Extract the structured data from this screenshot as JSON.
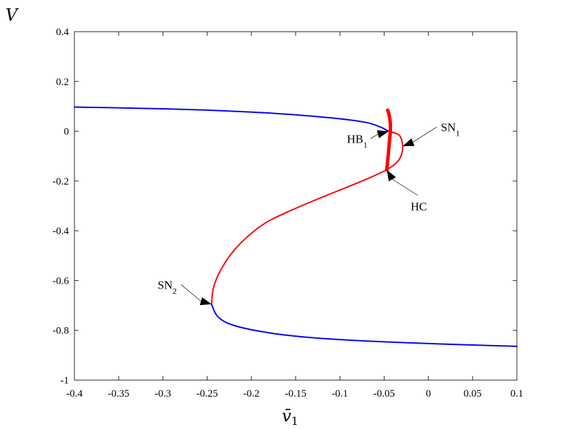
{
  "chart_data": {
    "type": "line",
    "title": "",
    "xlabel": "v̄",
    "xlabel_subscript": "1",
    "ylabel": "V",
    "xlim": [
      -0.4,
      0.1
    ],
    "ylim": [
      -1,
      0.4
    ],
    "grid": false,
    "x_ticks": [
      -0.4,
      -0.35,
      -0.3,
      -0.25,
      -0.2,
      -0.15,
      -0.1,
      -0.05,
      0,
      0.05,
      0.1
    ],
    "x_tick_labels": [
      "-0.4",
      "-0.35",
      "-0.3",
      "-0.25",
      "-0.2",
      "-0.15",
      "-0.1",
      "-0.05",
      "0",
      "0.05",
      "0.1"
    ],
    "y_ticks": [
      0.4,
      0.2,
      0,
      -0.2,
      -0.4,
      -0.6,
      -0.8,
      -1
    ],
    "y_tick_labels": [
      "0.4",
      "0.2",
      "0",
      "-0.2",
      "-0.4",
      "-0.6",
      "-0.8",
      "-1"
    ],
    "series": [
      {
        "color": "#0000ff",
        "style": "stable-upper",
        "points": [
          [
            -0.4,
            0.097
          ],
          [
            -0.35,
            0.094
          ],
          [
            -0.3,
            0.09
          ],
          [
            -0.25,
            0.085
          ],
          [
            -0.2,
            0.077
          ],
          [
            -0.15,
            0.066
          ],
          [
            -0.1,
            0.05
          ],
          [
            -0.07,
            0.035
          ],
          [
            -0.055,
            0.018
          ],
          [
            -0.045,
            0.0
          ]
        ]
      },
      {
        "color": "#ff0000",
        "style": "unstable-loop",
        "points": [
          [
            -0.045,
            0.0
          ],
          [
            -0.038,
            -0.007
          ],
          [
            -0.032,
            -0.02
          ],
          [
            -0.029,
            -0.06
          ],
          [
            -0.031,
            -0.1
          ],
          [
            -0.037,
            -0.13
          ],
          [
            -0.047,
            -0.155
          ]
        ]
      },
      {
        "color": "#ff0000",
        "style": "unstable-middle",
        "points": [
          [
            -0.047,
            -0.155
          ],
          [
            -0.065,
            -0.185
          ],
          [
            -0.09,
            -0.222
          ],
          [
            -0.12,
            -0.265
          ],
          [
            -0.15,
            -0.31
          ],
          [
            -0.18,
            -0.36
          ],
          [
            -0.2,
            -0.41
          ],
          [
            -0.22,
            -0.48
          ],
          [
            -0.235,
            -0.56
          ],
          [
            -0.243,
            -0.63
          ],
          [
            -0.245,
            -0.695
          ]
        ]
      },
      {
        "color": "#0000ff",
        "style": "stable-lower",
        "points": [
          [
            -0.245,
            -0.695
          ],
          [
            -0.238,
            -0.745
          ],
          [
            -0.22,
            -0.78
          ],
          [
            -0.18,
            -0.81
          ],
          [
            -0.13,
            -0.83
          ],
          [
            -0.07,
            -0.843
          ],
          [
            0.0,
            -0.853
          ],
          [
            0.05,
            -0.859
          ],
          [
            0.1,
            -0.864
          ]
        ]
      },
      {
        "color": "#ff0000",
        "style": "periodic-orbit",
        "points": [
          [
            -0.046,
            0.085
          ],
          [
            -0.044,
            0.06
          ],
          [
            -0.043,
            0.03
          ],
          [
            -0.043,
            0.0
          ],
          [
            -0.044,
            -0.04
          ],
          [
            -0.045,
            -0.08
          ],
          [
            -0.046,
            -0.12
          ],
          [
            -0.047,
            -0.155
          ]
        ]
      }
    ],
    "annotations": [
      {
        "name": "hb1",
        "text": "HB",
        "sub": "1",
        "label_at": [
          -0.092,
          -0.047
        ],
        "point": [
          -0.045,
          0.0
        ]
      },
      {
        "name": "sn1",
        "text": "SN",
        "sub": "1",
        "label_at": [
          0.014,
          0.0
        ],
        "point": [
          -0.029,
          -0.06
        ]
      },
      {
        "name": "hc",
        "text": "HC",
        "sub": "",
        "label_at": [
          -0.02,
          -0.318
        ],
        "point": [
          -0.047,
          -0.155
        ]
      },
      {
        "name": "sn2",
        "text": "SN",
        "sub": "2",
        "label_at": [
          -0.306,
          -0.633
        ],
        "point": [
          -0.245,
          -0.695
        ]
      }
    ]
  }
}
